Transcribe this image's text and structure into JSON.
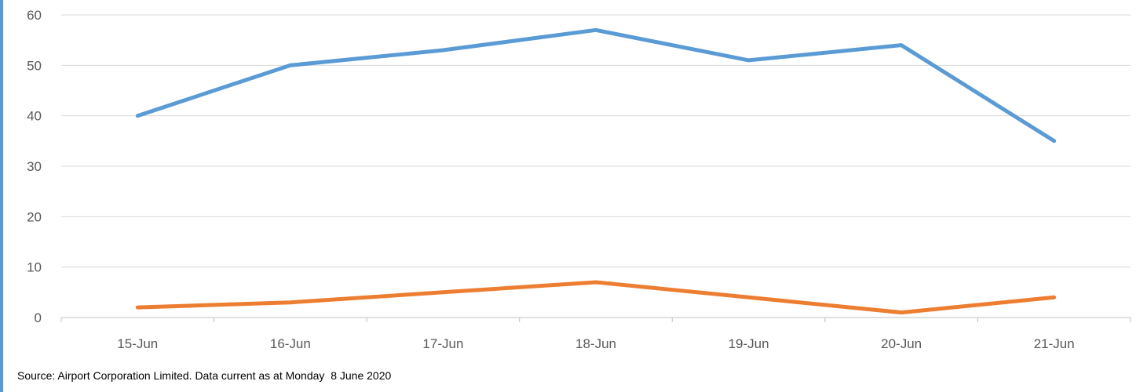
{
  "chart_data": {
    "type": "line",
    "title": "",
    "xlabel": "",
    "ylabel": "",
    "categories": [
      "15-Jun",
      "16-Jun",
      "17-Jun",
      "18-Jun",
      "19-Jun",
      "20-Jun",
      "21-Jun"
    ],
    "ylim": [
      0,
      60
    ],
    "yticks": [
      0,
      10,
      20,
      30,
      40,
      50,
      60
    ],
    "grid": true,
    "series": [
      {
        "color": "#5b9bd5",
        "values": [
          40,
          50,
          53,
          57,
          51,
          54,
          35
        ]
      },
      {
        "color": "#ed7d31",
        "values": [
          2,
          3,
          5,
          7,
          4,
          1,
          4
        ]
      }
    ]
  },
  "footer": {
    "source": "Source: Airport Corporation Limited. Data current as at Monday  8 June 2020"
  }
}
